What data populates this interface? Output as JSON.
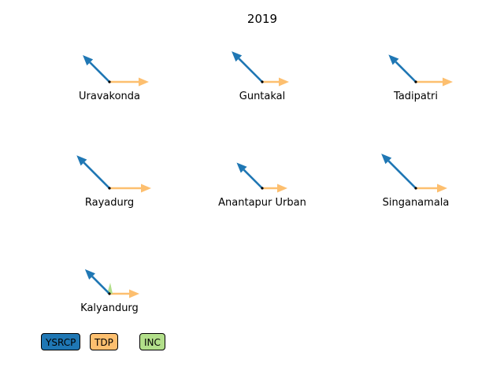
{
  "chart_data": {
    "type": "arrow-glyph",
    "title": "2019",
    "series": [
      {
        "name": "YSRCP",
        "color": "#1f77b4",
        "direction": "up-left"
      },
      {
        "name": "TDP",
        "color": "#fdbf6f",
        "direction": "right"
      },
      {
        "name": "INC",
        "color": "#b2df8a",
        "direction": "up"
      }
    ],
    "constituencies": [
      {
        "name": "Uravakonda",
        "values": {
          "YSRCP": 48,
          "TDP": 50,
          "INC": 0
        }
      },
      {
        "name": "Guntakal",
        "values": {
          "YSRCP": 55,
          "TDP": 34,
          "INC": 0
        }
      },
      {
        "name": "Tadipatri",
        "values": {
          "YSRCP": 49,
          "TDP": 47,
          "INC": 0
        }
      },
      {
        "name": "Rayadurg",
        "values": {
          "YSRCP": 59,
          "TDP": 53,
          "INC": 0
        }
      },
      {
        "name": "Anantapur Urban",
        "values": {
          "YSRCP": 46,
          "TDP": 32,
          "INC": 0
        }
      },
      {
        "name": "Singanamala",
        "values": {
          "YSRCP": 62,
          "TDP": 40,
          "INC": 0
        }
      },
      {
        "name": "Kalyandurg",
        "values": {
          "YSRCP": 44,
          "TDP": 38,
          "INC": 14
        }
      }
    ],
    "legend": [
      "YSRCP",
      "TDP",
      "INC"
    ],
    "grid": false
  }
}
